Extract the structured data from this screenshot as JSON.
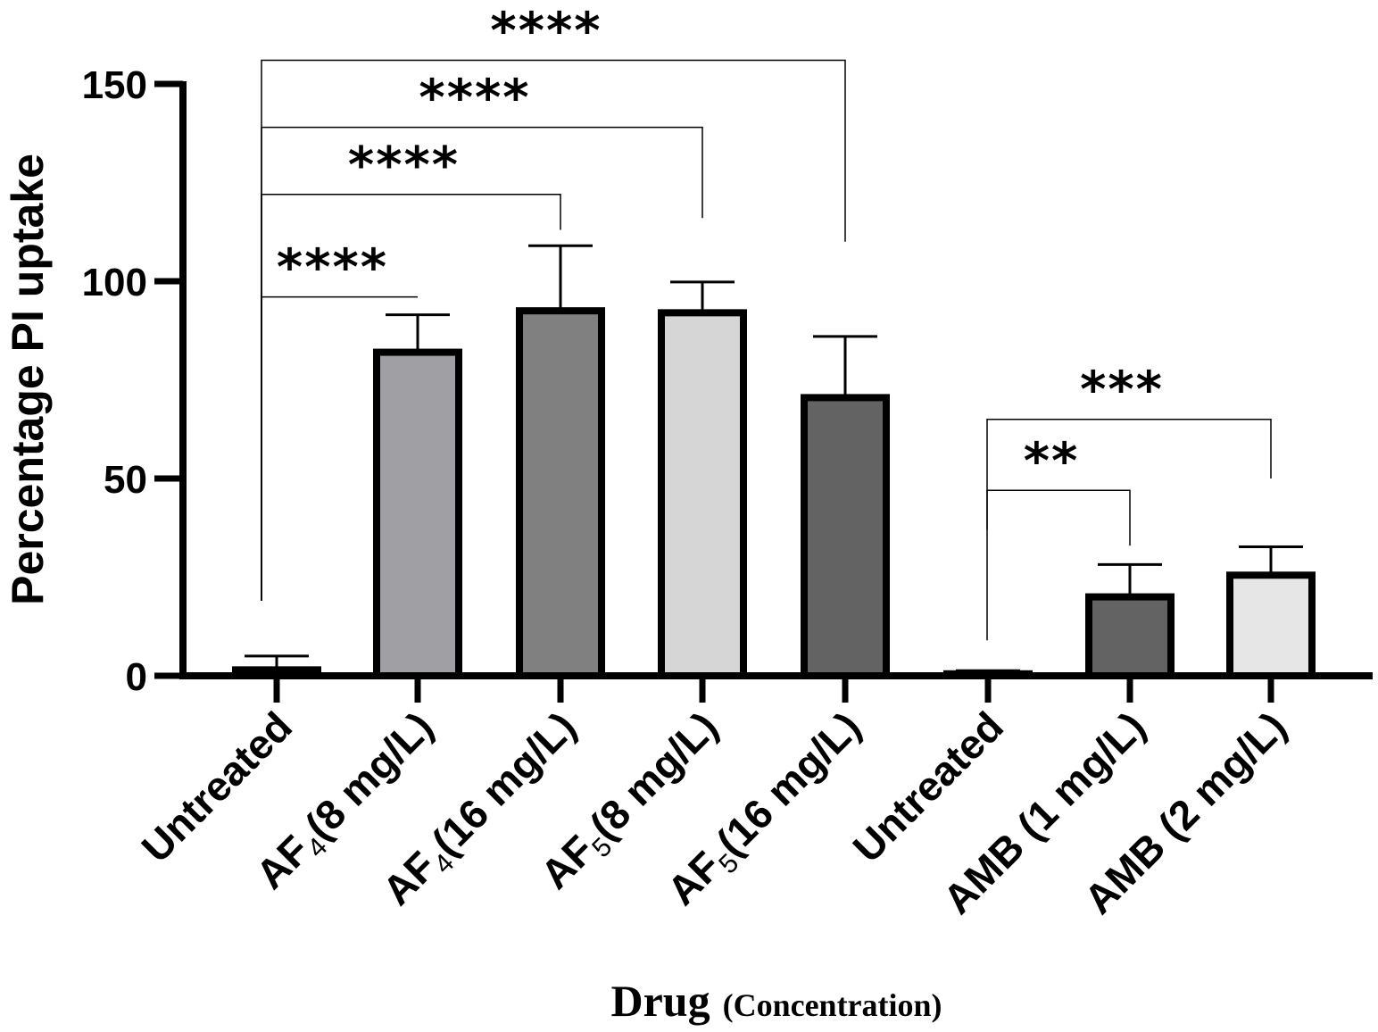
{
  "chart_data": {
    "type": "bar",
    "ylabel": "Percentage PI uptake",
    "xlabel": "Drug",
    "xlabel_sub": "(Concentration)",
    "ylim": [
      0,
      150
    ],
    "yticks": [
      0,
      50,
      100,
      150
    ],
    "ytick_labels": [
      "0",
      "50",
      "100",
      "150"
    ],
    "categories": [
      {
        "main": "AF",
        "sub": "",
        "rest": "",
        "text": "Untreated"
      },
      {
        "main": "AF",
        "sub": "4",
        "rest": "(8 mg/L)"
      },
      {
        "main": "AF",
        "sub": "4",
        "rest": "(16 mg/L)"
      },
      {
        "main": "AF",
        "sub": "5",
        "rest": "(8 mg/L)"
      },
      {
        "main": "AF",
        "sub": "5",
        "rest": "(16 mg/L)"
      },
      {
        "main": "AF",
        "sub": "",
        "rest": "",
        "text": "Untreated"
      },
      {
        "main": "",
        "sub": "",
        "rest": "",
        "text": "AMB (1 mg/L)"
      },
      {
        "main": "",
        "sub": "",
        "rest": "",
        "text": "AMB (2 mg/L)"
      }
    ],
    "values": [
      1.5,
      82,
      92.5,
      92,
      70.5,
      0.5,
      20,
      25.5
    ],
    "errors": [
      3.5,
      9.5,
      16.5,
      7.8,
      15.5,
      0.8,
      8.2,
      7.2
    ],
    "bar_colors": [
      "#ffffff",
      "#a0a0a4",
      "#808080",
      "#d6d6d6",
      "#636363",
      "#ffffff",
      "#636363",
      "#e6e6e6"
    ],
    "comparisons": [
      {
        "from": 0,
        "to": 1,
        "label": "****",
        "bracket_y": 96,
        "from_drop": 19,
        "to_drop": 96
      },
      {
        "from": 0,
        "to": 2,
        "label": "****",
        "bracket_y": 122,
        "from_drop": 19,
        "to_drop": 113
      },
      {
        "from": 0,
        "to": 3,
        "label": "****",
        "bracket_y": 139,
        "from_drop": 19,
        "to_drop": 116
      },
      {
        "from": 0,
        "to": 4,
        "label": "****",
        "bracket_y": 156,
        "from_drop": 19,
        "to_drop": 110
      },
      {
        "from": 5,
        "to": 6,
        "label": "**",
        "bracket_y": 47,
        "from_drop": 37,
        "to_drop": 33
      },
      {
        "from": 5,
        "to": 7,
        "label": "***",
        "bracket_y": 65,
        "from_drop": 9,
        "to_drop": 50
      }
    ]
  }
}
